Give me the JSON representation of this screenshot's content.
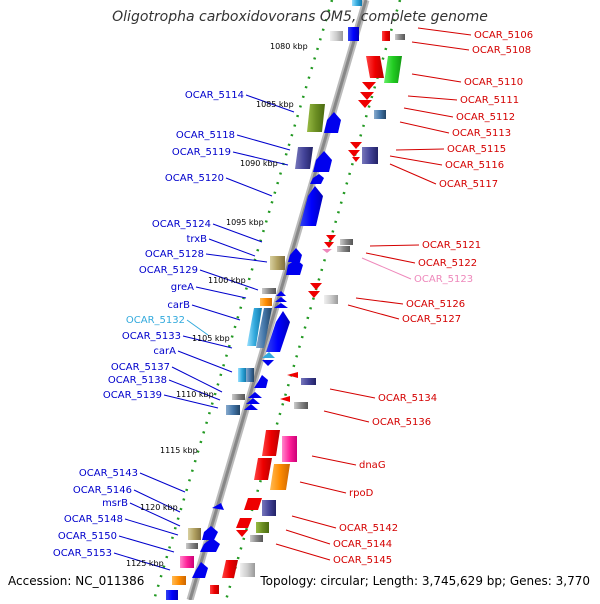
{
  "title": "Oligotropha carboxidovorans OM5, complete genome",
  "footer": {
    "accession": "Accession: NC_011386",
    "topology": "Topology: circular; Length: 3,745,629 bp; Genes: 3,770"
  },
  "colors": {
    "right_label": "#d40000",
    "left_label": "#0000cc",
    "left_label_light": "#33aadd",
    "right_label_light": "#ee88bb",
    "backbone": "#999999",
    "dotted": "#229922"
  },
  "ticks": [
    {
      "label": "1080 kbp"
    },
    {
      "label": "1085 kbp"
    },
    {
      "label": "1090 kbp"
    },
    {
      "label": "1095 kbp"
    },
    {
      "label": "1100 kbp"
    },
    {
      "label": "1105 kbp"
    },
    {
      "label": "1110 kbp"
    },
    {
      "label": "1115 kbp"
    },
    {
      "label": "1120 kbp"
    },
    {
      "label": "1125 kbp"
    }
  ],
  "left_genes": [
    {
      "label": "OCAR_5114",
      "tone": "normal"
    },
    {
      "label": "OCAR_5118",
      "tone": "normal"
    },
    {
      "label": "OCAR_5119",
      "tone": "normal"
    },
    {
      "label": "OCAR_5120",
      "tone": "normal"
    },
    {
      "label": "OCAR_5124",
      "tone": "normal"
    },
    {
      "label": "trxB",
      "tone": "normal"
    },
    {
      "label": "OCAR_5128",
      "tone": "normal"
    },
    {
      "label": "OCAR_5129",
      "tone": "normal"
    },
    {
      "label": "greA",
      "tone": "normal"
    },
    {
      "label": "carB",
      "tone": "normal"
    },
    {
      "label": "OCAR_5132",
      "tone": "light"
    },
    {
      "label": "OCAR_5133",
      "tone": "normal"
    },
    {
      "label": "carA",
      "tone": "normal"
    },
    {
      "label": "OCAR_5137",
      "tone": "normal"
    },
    {
      "label": "OCAR_5138",
      "tone": "normal"
    },
    {
      "label": "OCAR_5139",
      "tone": "normal"
    },
    {
      "label": "OCAR_5143",
      "tone": "normal"
    },
    {
      "label": "OCAR_5146",
      "tone": "normal"
    },
    {
      "label": "msrB",
      "tone": "normal"
    },
    {
      "label": "OCAR_5148",
      "tone": "normal"
    },
    {
      "label": "OCAR_5150",
      "tone": "normal"
    },
    {
      "label": "OCAR_5153",
      "tone": "normal"
    }
  ],
  "right_genes": [
    {
      "label": "OCAR_5106",
      "tone": "normal"
    },
    {
      "label": "OCAR_5108",
      "tone": "normal"
    },
    {
      "label": "OCAR_5110",
      "tone": "normal"
    },
    {
      "label": "OCAR_5111",
      "tone": "normal"
    },
    {
      "label": "OCAR_5112",
      "tone": "normal"
    },
    {
      "label": "OCAR_5113",
      "tone": "normal"
    },
    {
      "label": "OCAR_5115",
      "tone": "normal"
    },
    {
      "label": "OCAR_5116",
      "tone": "normal"
    },
    {
      "label": "OCAR_5117",
      "tone": "normal"
    },
    {
      "label": "OCAR_5121",
      "tone": "normal"
    },
    {
      "label": "OCAR_5122",
      "tone": "normal"
    },
    {
      "label": "OCAR_5123",
      "tone": "light"
    },
    {
      "label": "OCAR_5126",
      "tone": "normal"
    },
    {
      "label": "OCAR_5127",
      "tone": "normal"
    },
    {
      "label": "OCAR_5134",
      "tone": "normal"
    },
    {
      "label": "OCAR_5136",
      "tone": "normal"
    },
    {
      "label": "dnaG",
      "tone": "normal"
    },
    {
      "label": "rpoD",
      "tone": "normal"
    },
    {
      "label": "OCAR_5142",
      "tone": "normal"
    },
    {
      "label": "OCAR_5144",
      "tone": "normal"
    },
    {
      "label": "OCAR_5145",
      "tone": "normal"
    }
  ]
}
